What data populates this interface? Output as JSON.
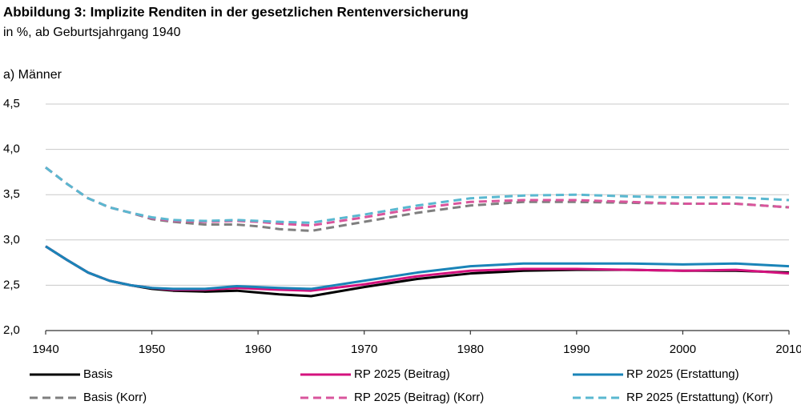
{
  "chart_data": {
    "type": "line",
    "title": "Abbildung 3: Implizite Renditen in der gesetzlichen Rentenversicherung",
    "subtitle": "in %, ab Geburtsjahrgang 1940",
    "panel_label": "a) Männer",
    "x": [
      1940,
      1942,
      1944,
      1946,
      1948,
      1950,
      1952,
      1955,
      1958,
      1960,
      1962,
      1965,
      1970,
      1975,
      1980,
      1985,
      1990,
      1995,
      2000,
      2005,
      2010
    ],
    "xlim": [
      1940,
      2010
    ],
    "xticks": [
      1940,
      1950,
      1960,
      1970,
      1980,
      1990,
      2000,
      2010
    ],
    "ylim": [
      2.0,
      4.5
    ],
    "yticks": [
      {
        "value": 2.0,
        "label": "2,0"
      },
      {
        "value": 2.5,
        "label": "2,5"
      },
      {
        "value": 3.0,
        "label": "3,0"
      },
      {
        "value": 3.5,
        "label": "3,5"
      },
      {
        "value": 4.0,
        "label": "4,0"
      },
      {
        "value": 4.5,
        "label": "4,5"
      }
    ],
    "grid": true,
    "legend": "bottom",
    "series": [
      {
        "name": "Basis",
        "color": "#000000",
        "dashed": false,
        "values": [
          2.93,
          2.78,
          2.64,
          2.55,
          2.5,
          2.46,
          2.44,
          2.43,
          2.44,
          2.42,
          2.4,
          2.38,
          2.48,
          2.57,
          2.63,
          2.66,
          2.67,
          2.67,
          2.66,
          2.66,
          2.64
        ]
      },
      {
        "name": "RP 2025 (Beitrag)",
        "color": "#d4127e",
        "dashed": false,
        "values": [
          2.93,
          2.78,
          2.64,
          2.55,
          2.5,
          2.47,
          2.45,
          2.45,
          2.47,
          2.46,
          2.45,
          2.44,
          2.51,
          2.6,
          2.66,
          2.68,
          2.68,
          2.67,
          2.66,
          2.67,
          2.63
        ]
      },
      {
        "name": "RP 2025 (Erstattung)",
        "color": "#1a84b8",
        "dashed": false,
        "values": [
          2.93,
          2.78,
          2.64,
          2.55,
          2.5,
          2.47,
          2.46,
          2.46,
          2.49,
          2.48,
          2.47,
          2.46,
          2.55,
          2.64,
          2.71,
          2.74,
          2.74,
          2.74,
          2.73,
          2.74,
          2.71
        ]
      },
      {
        "name": "Basis (Korr)",
        "color": "#7f7f7f",
        "dashed": true,
        "values": [
          3.8,
          3.62,
          3.46,
          3.36,
          3.3,
          3.23,
          3.2,
          3.17,
          3.17,
          3.15,
          3.12,
          3.1,
          3.2,
          3.3,
          3.38,
          3.42,
          3.42,
          3.41,
          3.4,
          3.4,
          3.36
        ]
      },
      {
        "name": "RP 2025 (Beitrag) (Korr)",
        "color": "#d9559c",
        "dashed": true,
        "values": [
          3.8,
          3.62,
          3.46,
          3.36,
          3.3,
          3.24,
          3.21,
          3.2,
          3.21,
          3.2,
          3.18,
          3.16,
          3.25,
          3.35,
          3.42,
          3.44,
          3.44,
          3.42,
          3.4,
          3.4,
          3.36
        ]
      },
      {
        "name": "RP 2025 (Erstattung) (Korr)",
        "color": "#5ab8d0",
        "dashed": true,
        "values": [
          3.8,
          3.62,
          3.46,
          3.36,
          3.3,
          3.25,
          3.22,
          3.21,
          3.22,
          3.21,
          3.2,
          3.19,
          3.28,
          3.38,
          3.46,
          3.49,
          3.5,
          3.48,
          3.47,
          3.47,
          3.44
        ]
      }
    ]
  }
}
